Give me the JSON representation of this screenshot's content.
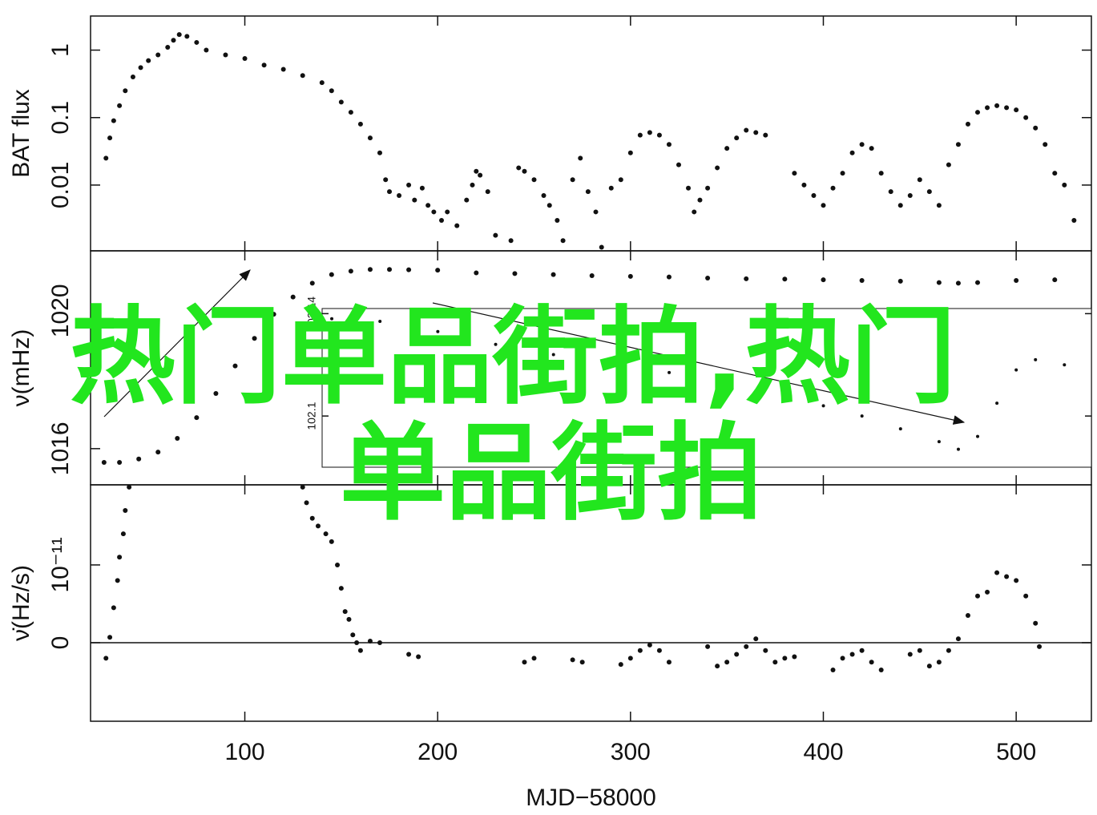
{
  "chart_data": [
    {
      "type": "scatter",
      "ylabel": "BAT flux",
      "log_y": true,
      "xlim": [
        20,
        539
      ],
      "ylim": [
        0.00106,
        3.2
      ],
      "yticks": [
        0.01,
        0.1,
        1
      ],
      "x": [
        28,
        30,
        32,
        35,
        38,
        42,
        46,
        50,
        55,
        60,
        63,
        66,
        70,
        75,
        80,
        90,
        100,
        110,
        120,
        130,
        140,
        145,
        150,
        155,
        160,
        165,
        170,
        173,
        175,
        180,
        185,
        188,
        192,
        195,
        198,
        202,
        205,
        210,
        215,
        218,
        220,
        222,
        226,
        230,
        238,
        242,
        245,
        250,
        255,
        258,
        262,
        265,
        270,
        274,
        278,
        282,
        285,
        290,
        295,
        300,
        305,
        310,
        315,
        320,
        325,
        330,
        333,
        336,
        340,
        345,
        350,
        355,
        360,
        365,
        370,
        385,
        390,
        395,
        400,
        405,
        410,
        415,
        420,
        425,
        430,
        435,
        440,
        445,
        450,
        455,
        460,
        465,
        470,
        475,
        480,
        485,
        490,
        495,
        500,
        505,
        510,
        515,
        520,
        525,
        530
      ],
      "values": [
        0.025,
        0.05,
        0.09,
        0.15,
        0.25,
        0.4,
        0.55,
        0.7,
        0.85,
        1.1,
        1.4,
        1.7,
        1.6,
        1.3,
        1.0,
        0.85,
        0.75,
        0.6,
        0.52,
        0.42,
        0.33,
        0.25,
        0.17,
        0.12,
        0.08,
        0.05,
        0.03,
        0.012,
        0.008,
        0.007,
        0.01,
        0.006,
        0.009,
        0.005,
        0.004,
        0.003,
        0.004,
        0.0025,
        0.006,
        0.01,
        0.016,
        0.014,
        0.008,
        0.0018,
        0.0015,
        0.018,
        0.016,
        0.012,
        0.007,
        0.005,
        0.003,
        0.0015,
        0.012,
        0.025,
        0.008,
        0.004,
        0.0012,
        0.009,
        0.012,
        0.03,
        0.055,
        0.06,
        0.055,
        0.04,
        0.02,
        0.009,
        0.004,
        0.006,
        0.009,
        0.018,
        0.035,
        0.05,
        0.065,
        0.06,
        0.055,
        0.015,
        0.01,
        0.007,
        0.005,
        0.009,
        0.015,
        0.03,
        0.04,
        0.035,
        0.015,
        0.008,
        0.005,
        0.007,
        0.012,
        0.008,
        0.005,
        0.02,
        0.04,
        0.08,
        0.12,
        0.14,
        0.15,
        0.14,
        0.13,
        0.1,
        0.07,
        0.04,
        0.015,
        0.01,
        0.003
      ]
    },
    {
      "type": "scatter",
      "ylabel": "ν(mHz)",
      "xlim": [
        20,
        539
      ],
      "ylim": [
        1014.95,
        1021.74
      ],
      "yticks": [
        1016,
        1020
      ],
      "x": [
        27,
        35,
        45,
        55,
        65,
        75,
        85,
        95,
        105,
        115,
        125,
        135,
        145,
        155,
        165,
        175,
        185,
        200,
        220,
        240,
        260,
        280,
        300,
        320,
        340,
        360,
        380,
        400,
        420,
        440,
        460,
        470,
        480,
        500,
        520
      ],
      "values": [
        1015.6,
        1015.6,
        1015.7,
        1015.9,
        1016.3,
        1016.9,
        1017.6,
        1018.4,
        1019.2,
        1019.9,
        1020.4,
        1020.8,
        1021.05,
        1021.15,
        1021.2,
        1021.2,
        1021.19,
        1021.18,
        1021.1,
        1021.08,
        1021.05,
        1021.02,
        1021.0,
        1020.98,
        1020.95,
        1020.93,
        1020.92,
        1020.9,
        1020.88,
        1020.86,
        1020.82,
        1020.8,
        1020.82,
        1020.88,
        1020.9
      ]
    },
    {
      "type": "scatter",
      "ylabel": "ν̇(Hz/s)",
      "xlabel": "MJD−58000",
      "zero_line": true,
      "xlim": [
        20,
        539
      ],
      "ylim": [
        -1.01e-11,
        2.03e-11
      ],
      "yticks": [
        0,
        {
          "value": 1e-11,
          "label": "10⁻¹¹"
        }
      ],
      "xticks": [
        100,
        200,
        300,
        400,
        500
      ],
      "x": [
        28,
        30,
        32,
        34,
        35,
        37,
        38,
        40,
        130,
        132,
        135,
        138,
        142,
        145,
        148,
        150,
        152,
        154,
        156,
        158,
        160,
        165,
        170,
        185,
        190,
        245,
        250,
        270,
        275,
        295,
        300,
        305,
        310,
        315,
        320,
        340,
        345,
        350,
        355,
        360,
        365,
        370,
        375,
        380,
        385,
        405,
        410,
        415,
        420,
        425,
        430,
        445,
        450,
        455,
        460,
        465,
        470,
        475,
        480,
        485,
        490,
        495,
        500,
        505,
        510,
        512
      ],
      "values": [
        -2e-12,
        7e-13,
        4.5e-12,
        8e-12,
        1.1e-11,
        1.4e-11,
        1.7e-11,
        2e-11,
        2e-11,
        1.8e-11,
        1.6e-11,
        1.5e-11,
        1.4e-11,
        1.3e-11,
        1e-11,
        7e-12,
        4e-12,
        3e-12,
        1e-12,
        0,
        -1e-12,
        2e-13,
        0,
        -1.5e-12,
        -1.8e-12,
        -2.5e-12,
        -2e-12,
        -2.2e-12,
        -2.5e-12,
        -2.8e-12,
        -2e-12,
        -1e-12,
        -3e-13,
        -1e-12,
        -2.5e-12,
        -5e-13,
        -3e-12,
        -2.5e-12,
        -1.5e-12,
        -5e-13,
        5e-13,
        -1e-12,
        -2.5e-12,
        -2e-12,
        -1.8e-12,
        -3.5e-12,
        -2e-12,
        -1.5e-12,
        -1e-12,
        -2.5e-12,
        -3.5e-12,
        -1.5e-12,
        -1e-12,
        -3e-12,
        -2.5e-12,
        -1e-12,
        5e-13,
        3.5e-12,
        6e-12,
        6.5e-12,
        9e-12,
        8.5e-12,
        8e-12,
        6e-12,
        2.5e-12,
        -5e-13
      ]
    },
    {
      "type": "scatter",
      "inset": true,
      "xlim": [
        140,
        539
      ],
      "ylim": [
        102.08,
        102.142
      ],
      "yticks": [
        102.1,
        102.14
      ],
      "x": [
        145,
        170,
        200,
        230,
        260,
        290,
        320,
        350,
        380,
        400,
        420,
        440,
        460,
        470,
        480,
        490,
        500,
        510,
        525
      ],
      "values": [
        102.138,
        102.137,
        102.133,
        102.128,
        102.124,
        102.12,
        102.117,
        102.113,
        102.108,
        102.104,
        102.1,
        102.095,
        102.09,
        102.087,
        102.092,
        102.105,
        102.118,
        102.122,
        102.12
      ]
    }
  ],
  "overlay_text": [
    "热门单品街拍,热门",
    "单品街拍"
  ]
}
